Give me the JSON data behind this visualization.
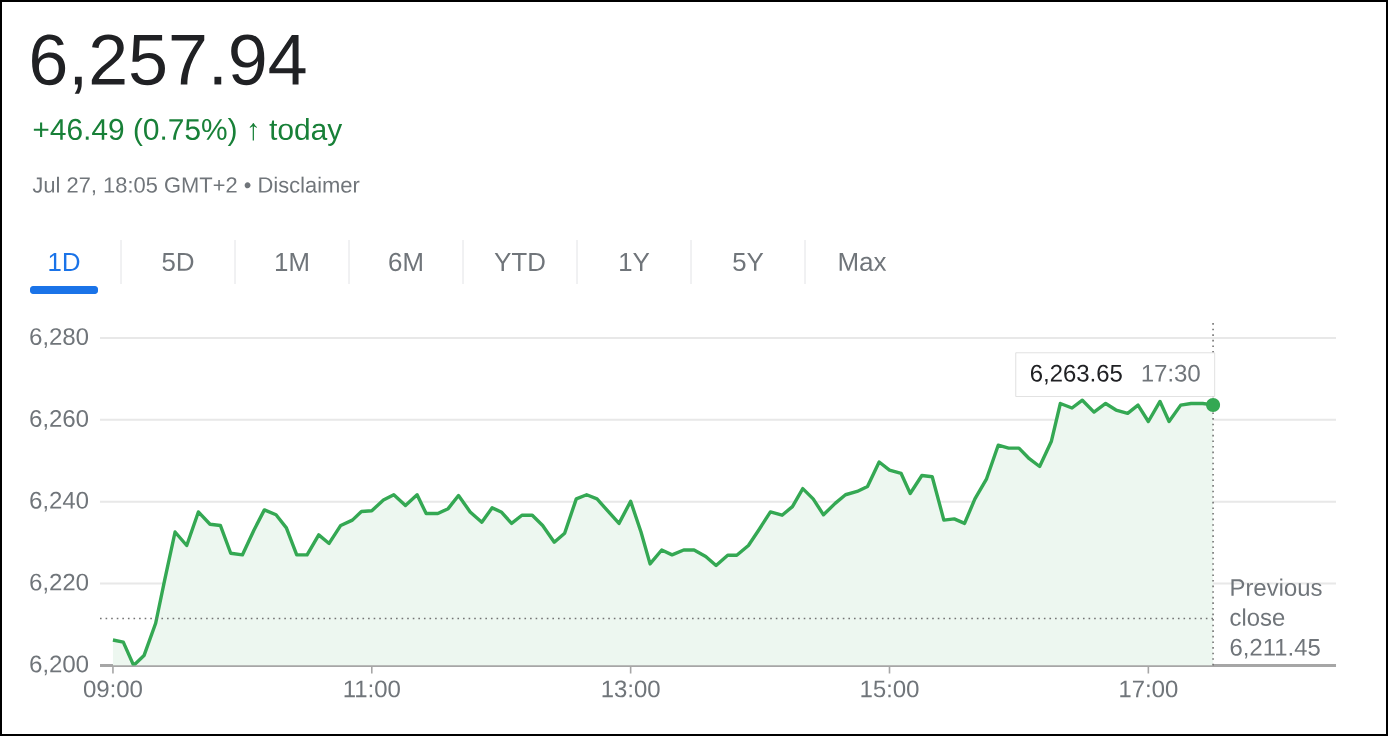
{
  "chart_data": {
    "type": "area",
    "title": "6,257.94",
    "subtitle": "+46.49 (0.75%) ↑ today",
    "annotations": [
      "Jul 27, 18:05 GMT+2 • Disclaimer",
      "1D",
      "5D",
      "1M",
      "6M",
      "YTD",
      "1Y",
      "5Y",
      "Max",
      "6,263.65"
    ],
    "x": [
      9.0,
      9.08,
      9.16,
      9.24,
      9.33,
      9.4,
      9.48,
      9.57,
      9.66,
      9.75,
      9.83,
      9.91,
      10.0,
      10.09,
      10.17,
      10.26,
      10.34,
      10.42,
      10.5,
      10.59,
      10.67,
      10.76,
      10.85,
      10.92,
      11.0,
      11.09,
      11.17,
      11.26,
      11.35,
      11.42,
      11.51,
      11.59,
      11.67,
      11.76,
      11.85,
      11.93,
      12.0,
      12.08,
      12.16,
      12.24,
      12.32,
      12.41,
      12.49,
      12.58,
      12.66,
      12.74,
      12.83,
      12.91,
      13.0,
      13.08,
      13.15,
      13.24,
      13.32,
      13.41,
      13.49,
      13.58,
      13.66,
      13.75,
      13.82,
      13.91,
      13.99,
      14.08,
      14.17,
      14.25,
      14.33,
      14.41,
      14.49,
      14.58,
      14.66,
      14.75,
      14.83,
      14.92,
      15.0,
      15.09,
      15.16,
      15.25,
      15.33,
      15.42,
      15.5,
      15.58,
      15.66,
      15.75,
      15.84,
      15.92,
      16.0,
      16.08,
      16.16,
      16.25,
      16.32,
      16.41,
      16.49,
      16.58,
      16.67,
      16.75,
      16.84,
      16.92,
      17.0,
      17.09,
      17.16,
      17.25,
      17.33,
      17.42,
      17.5
    ],
    "series": [
      {
        "color": "#34a853",
        "values": [
          6206.2,
          6205.7,
          6200.0,
          6202.4,
          6210.3,
          6220.9,
          6232.6,
          6229.3,
          6237.5,
          6234.5,
          6234.2,
          6227.4,
          6227.0,
          6233.1,
          6238.0,
          6236.8,
          6233.6,
          6227.0,
          6227.0,
          6231.9,
          6229.8,
          6234.2,
          6235.5,
          6237.6,
          6237.8,
          6240.4,
          6241.7,
          6239.1,
          6241.7,
          6237.1,
          6237.1,
          6238.3,
          6241.5,
          6237.5,
          6235.0,
          6238.5,
          6237.5,
          6234.7,
          6236.7,
          6236.7,
          6234.2,
          6230.1,
          6232.3,
          6240.7,
          6241.7,
          6240.7,
          6237.5,
          6234.7,
          6240.1,
          6232.6,
          6224.8,
          6228.2,
          6227.0,
          6228.2,
          6228.2,
          6226.6,
          6224.4,
          6226.9,
          6226.9,
          6229.3,
          6233.1,
          6237.5,
          6236.7,
          6238.8,
          6243.2,
          6240.7,
          6236.8,
          6239.6,
          6241.7,
          6242.5,
          6243.7,
          6249.7,
          6247.7,
          6246.9,
          6242.0,
          6246.4,
          6246.1,
          6235.5,
          6235.8,
          6234.7,
          6240.7,
          6245.6,
          6253.8,
          6253.1,
          6253.1,
          6250.5,
          6248.6,
          6254.7,
          6264.0,
          6262.9,
          6264.8,
          6261.9,
          6264.0,
          6262.4,
          6261.6,
          6263.6,
          6259.6,
          6264.5,
          6259.6,
          6263.6,
          6264.0,
          6264.0,
          6263.65
        ]
      }
    ],
    "xlim": [
      8.9,
      18.45
    ],
    "ylim": [
      6200,
      6280
    ],
    "xticks": [
      {
        "value": 9,
        "label": "09:00"
      },
      {
        "value": 11,
        "label": "11:00"
      },
      {
        "value": 13,
        "label": "13:00"
      },
      {
        "value": 15,
        "label": "15:00"
      },
      {
        "value": 17,
        "label": "17:00"
      }
    ],
    "yticks": [
      {
        "value": 6200,
        "label": "6,200"
      },
      {
        "value": 6220,
        "label": "6,220"
      },
      {
        "value": 6240,
        "label": "6,240"
      },
      {
        "value": 6260,
        "label": "6,260"
      },
      {
        "value": 6280,
        "label": "6,280"
      }
    ],
    "grid": "y",
    "line_style": "solid",
    "ref_lines": [
      {
        "axis": "y",
        "value": 6211.45,
        "label": "Previous close 6,211.45",
        "line_style": "dotted"
      },
      {
        "axis": "x",
        "value": 17.5,
        "label": "17:30",
        "line_style": "dotted"
      }
    ]
  }
}
